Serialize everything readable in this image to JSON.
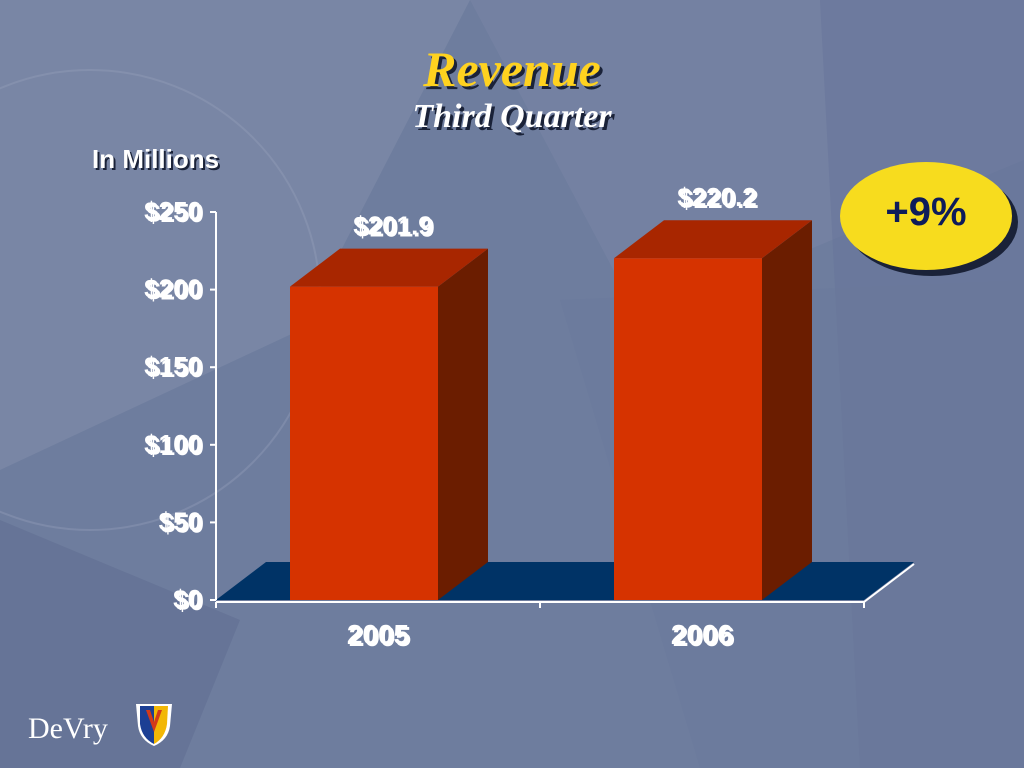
{
  "slide": {
    "title": "Revenue",
    "subtitle": "Third Quarter",
    "unit_label": "In Millions",
    "change_badge": "+9%",
    "logo_text": "DeVry"
  },
  "colors": {
    "title": "#ffd21f",
    "bar_front": "#d63300",
    "bar_top": "#a82600",
    "bar_side": "#6b1d00",
    "floor": "#003366",
    "badge_fill": "#f7dc1e",
    "badge_text": "#0e1c5a"
  },
  "chart_data": {
    "type": "bar",
    "title": "Revenue",
    "subtitle": "Third Quarter",
    "ylabel": "In Millions",
    "categories": [
      "2005",
      "2006"
    ],
    "values": [
      201.9,
      220.2
    ],
    "value_labels": [
      "$201.9",
      "$220.2"
    ],
    "ylim": [
      0,
      250
    ],
    "yticks": [
      0,
      50,
      100,
      150,
      200,
      250
    ],
    "ytick_labels": [
      "$0",
      "$50",
      "$100",
      "$150",
      "$200",
      "$250"
    ],
    "grid": false,
    "style": "3d"
  }
}
